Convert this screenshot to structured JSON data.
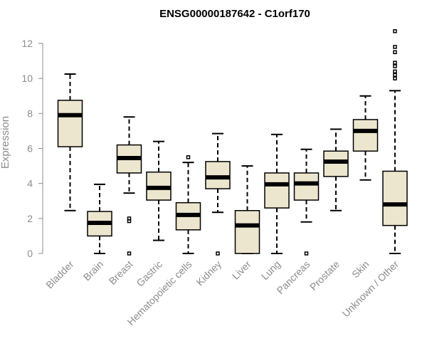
{
  "chart_data": {
    "type": "box",
    "title": "ENSG00000187642 - C1orf170",
    "ylabel": "Expression",
    "xlabel": "",
    "ylim": [
      0,
      12.5
    ],
    "yticks": [
      0,
      2,
      4,
      6,
      8,
      10,
      12
    ],
    "grid": false,
    "colors": {
      "box_fill": "#ede6cf",
      "box_stroke": "#000000",
      "axis": "#8c8c8c"
    },
    "categories": [
      "Bladder",
      "Brain",
      "Breast",
      "Gastric",
      "Hematopoietic cells",
      "Kidney",
      "Liver",
      "Lung",
      "Pancreas",
      "Prostate",
      "Skin",
      "Unknown / Other"
    ],
    "boxes": [
      {
        "whisker_low": 2.45,
        "q1": 6.1,
        "median": 7.9,
        "q3": 8.75,
        "whisker_high": 10.25,
        "outliers": []
      },
      {
        "whisker_low": 0.0,
        "q1": 1.0,
        "median": 1.75,
        "q3": 2.4,
        "whisker_high": 3.95,
        "outliers": []
      },
      {
        "whisker_low": 3.45,
        "q1": 4.6,
        "median": 5.45,
        "q3": 6.2,
        "whisker_high": 7.8,
        "outliers": [
          1.85,
          2.0,
          0.0
        ]
      },
      {
        "whisker_low": 0.75,
        "q1": 3.05,
        "median": 3.75,
        "q3": 4.65,
        "whisker_high": 6.4,
        "outliers": []
      },
      {
        "whisker_low": 0.0,
        "q1": 1.35,
        "median": 2.2,
        "q3": 2.9,
        "whisker_high": 5.2,
        "outliers": [
          5.5
        ]
      },
      {
        "whisker_low": 2.35,
        "q1": 3.7,
        "median": 4.35,
        "q3": 5.25,
        "whisker_high": 6.85,
        "outliers": [
          0.0
        ]
      },
      {
        "whisker_low": 0.0,
        "q1": 0.0,
        "median": 1.6,
        "q3": 2.45,
        "whisker_high": 5.0,
        "outliers": []
      },
      {
        "whisker_low": 0.0,
        "q1": 2.6,
        "median": 3.95,
        "q3": 4.6,
        "whisker_high": 6.8,
        "outliers": []
      },
      {
        "whisker_low": 1.8,
        "q1": 3.05,
        "median": 4.0,
        "q3": 4.6,
        "whisker_high": 5.95,
        "outliers": [
          0.0
        ]
      },
      {
        "whisker_low": 2.45,
        "q1": 4.4,
        "median": 5.25,
        "q3": 5.85,
        "whisker_high": 7.1,
        "outliers": []
      },
      {
        "whisker_low": 4.2,
        "q1": 5.85,
        "median": 7.0,
        "q3": 7.65,
        "whisker_high": 9.0,
        "outliers": []
      },
      {
        "whisker_low": 0.0,
        "q1": 1.6,
        "median": 2.8,
        "q3": 4.7,
        "whisker_high": 9.3,
        "outliers": [
          10.0,
          10.2,
          10.4,
          10.7,
          10.9,
          11.5,
          11.8,
          12.7
        ]
      }
    ]
  }
}
